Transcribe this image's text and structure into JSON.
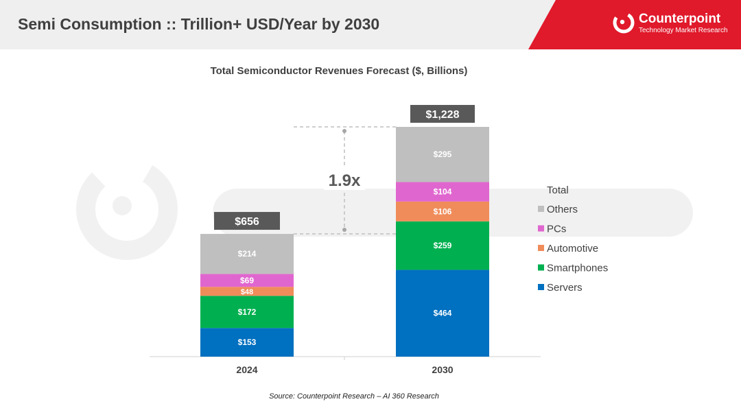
{
  "header": {
    "title": "Semi Consumption :: Trillion+ USD/Year by 2030",
    "brand_name": "Counterpoint",
    "brand_sub": "Technology Market Research"
  },
  "colors": {
    "Servers": "#0070c0",
    "Smartphones": "#00b050",
    "Automotive": "#f08c5a",
    "PCs": "#e066cf",
    "Others": "#bfbfbf",
    "total_box": "#595959",
    "brand": "#e0192b"
  },
  "chart_data": {
    "type": "bar",
    "stacked": true,
    "title": "Total Semiconductor Revenues Forecast ($, Billions)",
    "categories": [
      "2024",
      "2030"
    ],
    "series": [
      {
        "name": "Servers",
        "values": [
          153,
          464
        ],
        "labels": [
          "$153",
          "$464"
        ]
      },
      {
        "name": "Smartphones",
        "values": [
          172,
          259
        ],
        "labels": [
          "$172",
          "$259"
        ]
      },
      {
        "name": "Automotive",
        "values": [
          48,
          106
        ],
        "labels": [
          "$48",
          "$106"
        ]
      },
      {
        "name": "PCs",
        "values": [
          69,
          104
        ],
        "labels": [
          "$69",
          "$104"
        ]
      },
      {
        "name": "Others",
        "values": [
          214,
          295
        ],
        "labels": [
          "$214",
          "$295"
        ]
      }
    ],
    "totals": [
      656,
      1228
    ],
    "total_labels": [
      "$656",
      "$1,228"
    ],
    "growth_label": "1.9x",
    "legend_title": "Total",
    "legend_order": [
      "Others",
      "PCs",
      "Automotive",
      "Smartphones",
      "Servers"
    ],
    "legend_position": "right",
    "grid": false,
    "ylim": [
      0,
      1228
    ],
    "source": "Source: Counterpoint Research – AI 360 Research"
  }
}
